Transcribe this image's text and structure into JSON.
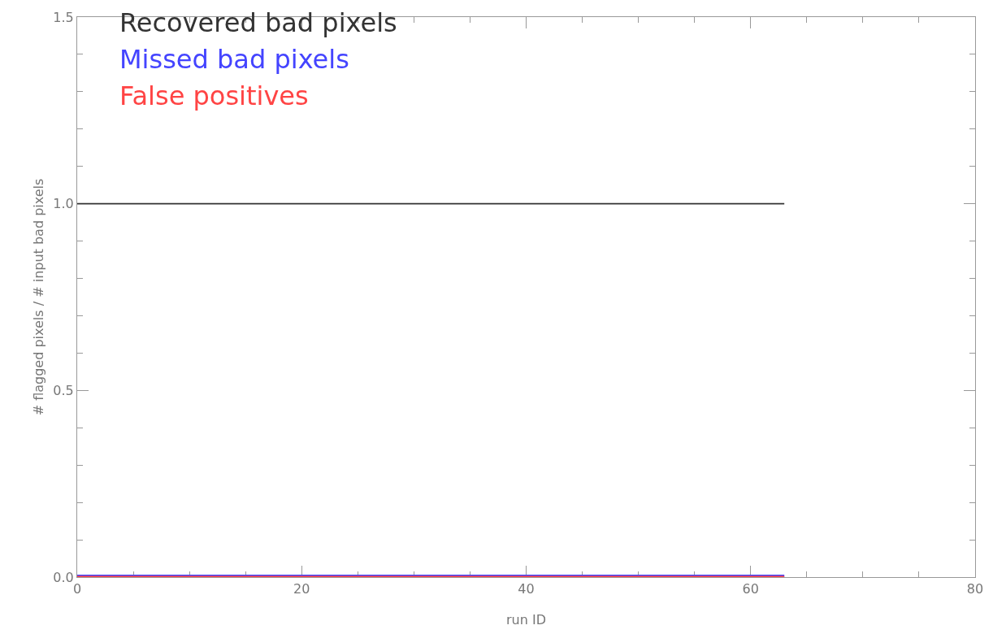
{
  "chart_data": {
    "type": "line",
    "xlabel": "run ID",
    "ylabel": "# flagged pixels / # input bad pixels",
    "xlim": [
      0,
      80
    ],
    "xticks": [
      0,
      20,
      40,
      60,
      80
    ],
    "ylim": [
      0,
      1.5
    ],
    "yticks": [
      {
        "value": 0,
        "label": "0.0"
      },
      {
        "value": 0.5,
        "label": "0.5"
      },
      {
        "value": 1,
        "label": "1.0"
      },
      {
        "value": 1.5,
        "label": "1.5"
      }
    ],
    "grid": false,
    "legend": "top left",
    "marker": "none",
    "line_style": "solid",
    "x": [
      0,
      63
    ],
    "series": [
      {
        "name": "Recovered bad pixels",
        "color": "#333333",
        "values": [
          1,
          1
        ]
      },
      {
        "name": "Missed bad pixels",
        "color": "#4444ff",
        "values": [
          0,
          0
        ]
      },
      {
        "name": "False positives",
        "color": "#ff4444",
        "values": [
          0,
          0
        ]
      }
    ]
  }
}
